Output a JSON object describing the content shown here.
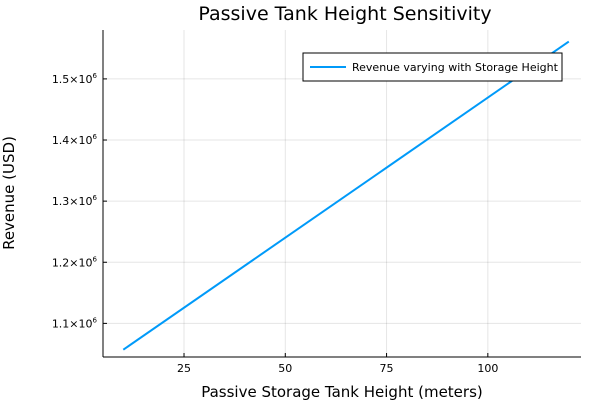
{
  "chart_data": {
    "type": "line",
    "title": "Passive Tank Height Sensitivity",
    "xlabel": "Passive Storage Tank Height (meters)",
    "ylabel": "Revenue (USD)",
    "xlim": [
      5,
      123
    ],
    "ylim": [
      1045000,
      1580000
    ],
    "x_ticks": [
      25,
      50,
      75,
      100
    ],
    "y_ticks": [
      {
        "value": 1100000,
        "mantissa": "1.1",
        "base": "×10",
        "exp": "6"
      },
      {
        "value": 1200000,
        "mantissa": "1.2",
        "base": "×10",
        "exp": "6"
      },
      {
        "value": 1300000,
        "mantissa": "1.3",
        "base": "×10",
        "exp": "6"
      },
      {
        "value": 1400000,
        "mantissa": "1.4",
        "base": "×10",
        "exp": "6"
      },
      {
        "value": 1500000,
        "mantissa": "1.5",
        "base": "×10",
        "exp": "6"
      }
    ],
    "grid": true,
    "legend_position": "top-right",
    "series": [
      {
        "name": "Revenue varying with Storage Height",
        "color": "#009af9",
        "x": [
          10,
          120
        ],
        "y": [
          1057000,
          1561000
        ]
      }
    ]
  }
}
